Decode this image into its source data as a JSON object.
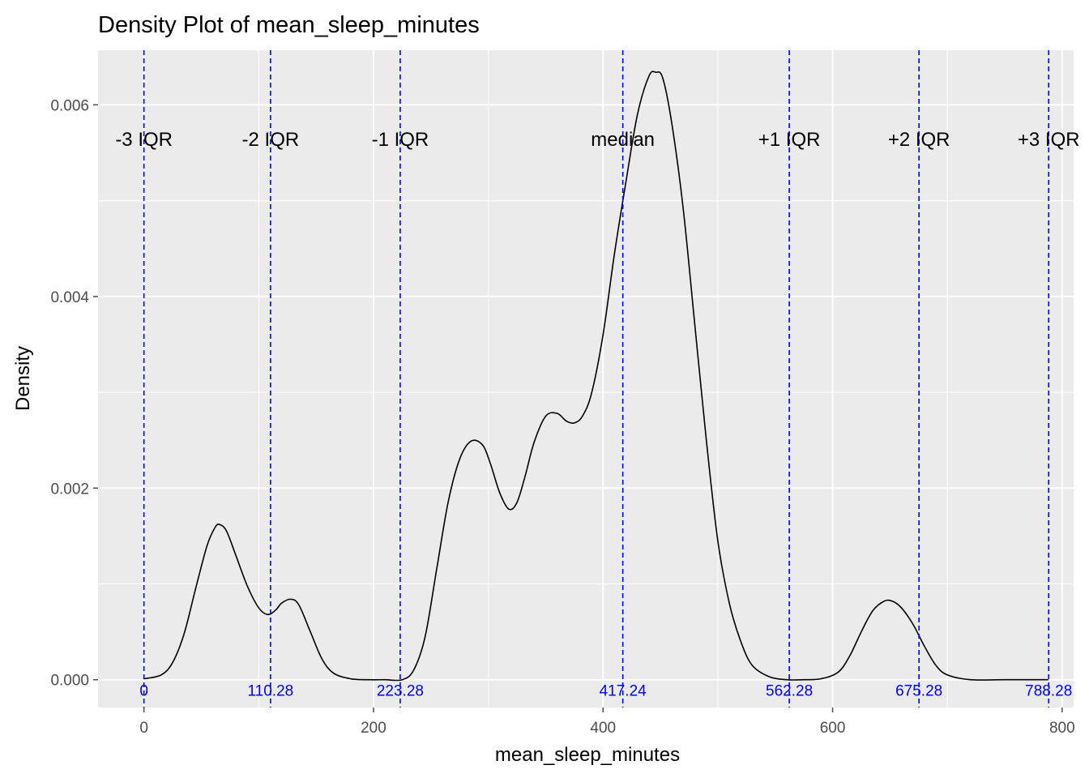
{
  "chart_data": {
    "type": "line",
    "title": "Density Plot of mean_sleep_minutes",
    "xlabel": "mean_sleep_minutes",
    "ylabel": "Density",
    "xlim": [
      -40,
      810
    ],
    "ylim": [
      -0.00029,
      0.00657
    ],
    "x_ticks": [
      0,
      200,
      400,
      600,
      800
    ],
    "y_ticks": [
      0.0,
      0.002,
      0.004,
      0.006
    ],
    "x_tick_labels": [
      "0",
      "200",
      "400",
      "600",
      "800"
    ],
    "y_tick_labels": [
      "0.000",
      "0.002",
      "0.004",
      "0.006"
    ],
    "grid": true,
    "colors": {
      "panel": "#EBEBEB",
      "grid": "#FFFFFF",
      "curve": "#000000",
      "ref_line": "#0000FF",
      "tick": "#4D4D4D"
    },
    "series": [
      {
        "x": [
          0,
          15,
          25,
          35,
          45,
          55,
          62,
          66,
          72,
          80,
          90,
          100,
          108,
          115,
          120,
          128,
          135,
          145,
          155,
          165,
          180,
          195,
          210,
          225,
          235,
          245,
          255,
          265,
          275,
          285,
          295,
          302,
          310,
          318,
          325,
          332,
          340,
          350,
          360,
          368,
          375,
          382,
          390,
          400,
          410,
          420,
          430,
          440,
          446,
          452,
          460,
          470,
          480,
          490,
          500,
          510,
          520,
          530,
          545,
          560,
          575,
          590,
          605,
          615,
          625,
          635,
          645,
          652,
          660,
          670,
          680,
          690,
          700,
          720,
          750,
          788
        ],
        "y": [
          1e-05,
          5e-05,
          0.00018,
          0.00048,
          0.00095,
          0.0014,
          0.00159,
          0.00162,
          0.00155,
          0.0013,
          0.00098,
          0.00075,
          0.00068,
          0.00073,
          0.0008,
          0.00084,
          0.00078,
          0.0005,
          0.00022,
          7e-05,
          1e-05,
          0.0,
          0.0,
          0.0,
          0.0001,
          0.00045,
          0.00115,
          0.00185,
          0.0023,
          0.00249,
          0.00245,
          0.00225,
          0.00195,
          0.00178,
          0.00185,
          0.00212,
          0.00248,
          0.00275,
          0.00278,
          0.0027,
          0.00268,
          0.00275,
          0.00299,
          0.0036,
          0.00445,
          0.0052,
          0.0059,
          0.0063,
          0.00634,
          0.00628,
          0.0058,
          0.0049,
          0.0037,
          0.0025,
          0.00145,
          0.0008,
          0.0004,
          0.00015,
          3e-05,
          0.0,
          0.0,
          1e-05,
          8e-05,
          0.00025,
          0.0005,
          0.00072,
          0.00082,
          0.00082,
          0.00075,
          0.00058,
          0.00035,
          0.00015,
          5e-05,
          0.0,
          0.0,
          0.0
        ]
      }
    ],
    "reference_lines": [
      {
        "x": 0,
        "label": "-3 IQR",
        "value_label": "0"
      },
      {
        "x": 110.28,
        "label": "-2 IQR",
        "value_label": "110.28"
      },
      {
        "x": 223.28,
        "label": "-1 IQR",
        "value_label": "223.28"
      },
      {
        "x": 417.24,
        "label": "median",
        "value_label": "417.24"
      },
      {
        "x": 562.28,
        "label": "+1 IQR",
        "value_label": "562.28"
      },
      {
        "x": 675.28,
        "label": "+2 IQR",
        "value_label": "675.28"
      },
      {
        "x": 788.28,
        "label": "+3 IQR",
        "value_label": "788.28"
      }
    ],
    "reference_label_y": 0.00565,
    "value_label_y": -0.00011
  }
}
